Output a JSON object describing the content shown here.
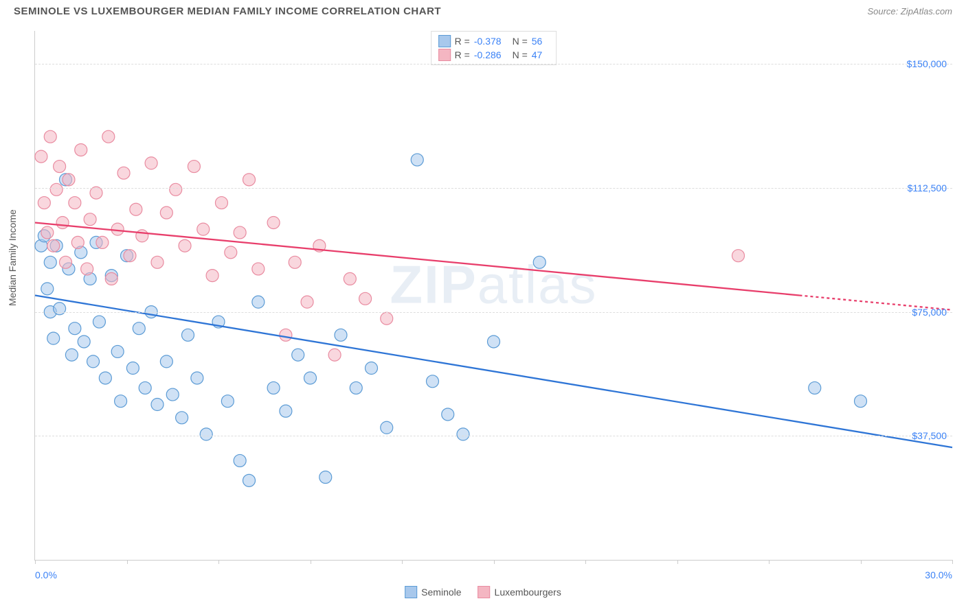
{
  "header": {
    "title": "SEMINOLE VS LUXEMBOURGER MEDIAN FAMILY INCOME CORRELATION CHART",
    "source": "Source: ZipAtlas.com"
  },
  "watermark": {
    "bold": "ZIP",
    "rest": "atlas"
  },
  "chart": {
    "type": "scatter",
    "y_axis_title": "Median Family Income",
    "xlim": [
      0,
      30
    ],
    "ylim": [
      0,
      160000
    ],
    "xlabel_min": "0.0%",
    "xlabel_max": "30.0%",
    "y_gridlines": [
      37500,
      75000,
      112500,
      150000
    ],
    "y_labels": [
      "$37,500",
      "$75,000",
      "$112,500",
      "$150,000"
    ],
    "x_ticks": [
      0,
      3,
      6,
      9,
      12,
      15,
      18,
      21,
      24,
      27,
      30
    ],
    "grid_color": "#dddddd",
    "axis_color": "#cccccc",
    "background_color": "#ffffff",
    "text_color": "#555555",
    "value_color": "#3b82f6"
  },
  "series": [
    {
      "name": "Seminole",
      "color_fill": "#a8c8ec",
      "color_stroke": "#5b9bd5",
      "fill_opacity": 0.55,
      "marker_radius": 9,
      "trend": {
        "x1": 0,
        "y1": 80000,
        "x2": 30,
        "y2": 34000,
        "dash_after_x": 30,
        "line_color": "#2e75d6",
        "line_width": 2.3
      },
      "stats": {
        "R": "-0.378",
        "N": "56"
      },
      "points": [
        [
          0.2,
          95000
        ],
        [
          0.3,
          98000
        ],
        [
          0.4,
          82000
        ],
        [
          0.5,
          90000
        ],
        [
          0.5,
          75000
        ],
        [
          0.6,
          67000
        ],
        [
          0.7,
          95000
        ],
        [
          0.8,
          76000
        ],
        [
          1.0,
          115000
        ],
        [
          1.1,
          88000
        ],
        [
          1.2,
          62000
        ],
        [
          1.3,
          70000
        ],
        [
          1.5,
          93000
        ],
        [
          1.6,
          66000
        ],
        [
          1.8,
          85000
        ],
        [
          1.9,
          60000
        ],
        [
          2.0,
          96000
        ],
        [
          2.1,
          72000
        ],
        [
          2.3,
          55000
        ],
        [
          2.5,
          86000
        ],
        [
          2.7,
          63000
        ],
        [
          2.8,
          48000
        ],
        [
          3.0,
          92000
        ],
        [
          3.2,
          58000
        ],
        [
          3.4,
          70000
        ],
        [
          3.6,
          52000
        ],
        [
          3.8,
          75000
        ],
        [
          4.0,
          47000
        ],
        [
          4.3,
          60000
        ],
        [
          4.5,
          50000
        ],
        [
          4.8,
          43000
        ],
        [
          5.0,
          68000
        ],
        [
          5.3,
          55000
        ],
        [
          5.6,
          38000
        ],
        [
          6.0,
          72000
        ],
        [
          6.3,
          48000
        ],
        [
          6.7,
          30000
        ],
        [
          7.0,
          24000
        ],
        [
          7.3,
          78000
        ],
        [
          7.8,
          52000
        ],
        [
          8.2,
          45000
        ],
        [
          8.6,
          62000
        ],
        [
          9.0,
          55000
        ],
        [
          9.5,
          25000
        ],
        [
          10.0,
          68000
        ],
        [
          10.5,
          52000
        ],
        [
          11.0,
          58000
        ],
        [
          11.5,
          40000
        ],
        [
          12.5,
          121000
        ],
        [
          13.0,
          54000
        ],
        [
          13.5,
          44000
        ],
        [
          14.0,
          38000
        ],
        [
          15.0,
          66000
        ],
        [
          16.5,
          90000
        ],
        [
          25.5,
          52000
        ],
        [
          27.0,
          48000
        ]
      ]
    },
    {
      "name": "Luxembourgers",
      "color_fill": "#f4b6c2",
      "color_stroke": "#e98ba0",
      "fill_opacity": 0.55,
      "marker_radius": 9,
      "trend": {
        "x1": 0,
        "y1": 102000,
        "x2": 25,
        "y2": 80000,
        "dash_after_x": 25,
        "line_color": "#e83e6b",
        "line_width": 2.3
      },
      "stats": {
        "R": "-0.286",
        "N": "47"
      },
      "points": [
        [
          0.2,
          122000
        ],
        [
          0.3,
          108000
        ],
        [
          0.4,
          99000
        ],
        [
          0.5,
          128000
        ],
        [
          0.6,
          95000
        ],
        [
          0.7,
          112000
        ],
        [
          0.8,
          119000
        ],
        [
          0.9,
          102000
        ],
        [
          1.0,
          90000
        ],
        [
          1.1,
          115000
        ],
        [
          1.3,
          108000
        ],
        [
          1.4,
          96000
        ],
        [
          1.5,
          124000
        ],
        [
          1.7,
          88000
        ],
        [
          1.8,
          103000
        ],
        [
          2.0,
          111000
        ],
        [
          2.2,
          96000
        ],
        [
          2.4,
          128000
        ],
        [
          2.5,
          85000
        ],
        [
          2.7,
          100000
        ],
        [
          2.9,
          117000
        ],
        [
          3.1,
          92000
        ],
        [
          3.3,
          106000
        ],
        [
          3.5,
          98000
        ],
        [
          3.8,
          120000
        ],
        [
          4.0,
          90000
        ],
        [
          4.3,
          105000
        ],
        [
          4.6,
          112000
        ],
        [
          4.9,
          95000
        ],
        [
          5.2,
          119000
        ],
        [
          5.5,
          100000
        ],
        [
          5.8,
          86000
        ],
        [
          6.1,
          108000
        ],
        [
          6.4,
          93000
        ],
        [
          6.7,
          99000
        ],
        [
          7.0,
          115000
        ],
        [
          7.3,
          88000
        ],
        [
          7.8,
          102000
        ],
        [
          8.2,
          68000
        ],
        [
          8.5,
          90000
        ],
        [
          8.9,
          78000
        ],
        [
          9.3,
          95000
        ],
        [
          9.8,
          62000
        ],
        [
          10.3,
          85000
        ],
        [
          10.8,
          79000
        ],
        [
          11.5,
          73000
        ],
        [
          23.0,
          92000
        ]
      ]
    }
  ],
  "legend": {
    "series1": "Seminole",
    "series2": "Luxembourgers"
  }
}
